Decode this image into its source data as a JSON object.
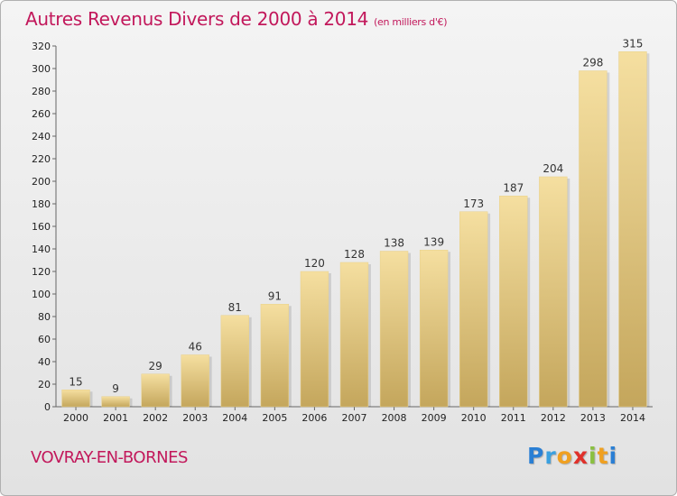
{
  "chart_data": {
    "type": "bar",
    "title": "Autres Revenus Divers de 2000 à 2014",
    "unit": "(en milliers d'€)",
    "categories": [
      "2000",
      "2001",
      "2002",
      "2003",
      "2004",
      "2005",
      "2006",
      "2007",
      "2008",
      "2009",
      "2010",
      "2011",
      "2012",
      "2013",
      "2014"
    ],
    "values": [
      15,
      9,
      29,
      46,
      81,
      91,
      120,
      128,
      138,
      139,
      173,
      187,
      204,
      298,
      315
    ],
    "ylim": [
      0,
      320
    ],
    "yticks": [
      0,
      20,
      40,
      60,
      80,
      100,
      120,
      140,
      160,
      180,
      200,
      220,
      240,
      260,
      280,
      300,
      320
    ],
    "grid": false,
    "xlabel": "",
    "ylabel": "",
    "colors": {
      "bar_light": "#f5dfa0",
      "bar_dark": "#c4a65c",
      "title": "#c2185b"
    }
  },
  "footer": {
    "place": "VOVRAY-EN-BORNES",
    "logo_letters": [
      "P",
      "r",
      "o",
      "x",
      "i",
      "t",
      "i"
    ],
    "logo_colors": [
      "#2a7fd4",
      "#3aa0e0",
      "#f0a020",
      "#e0302a",
      "#8ac040",
      "#f0a020",
      "#2a7fd4"
    ]
  }
}
